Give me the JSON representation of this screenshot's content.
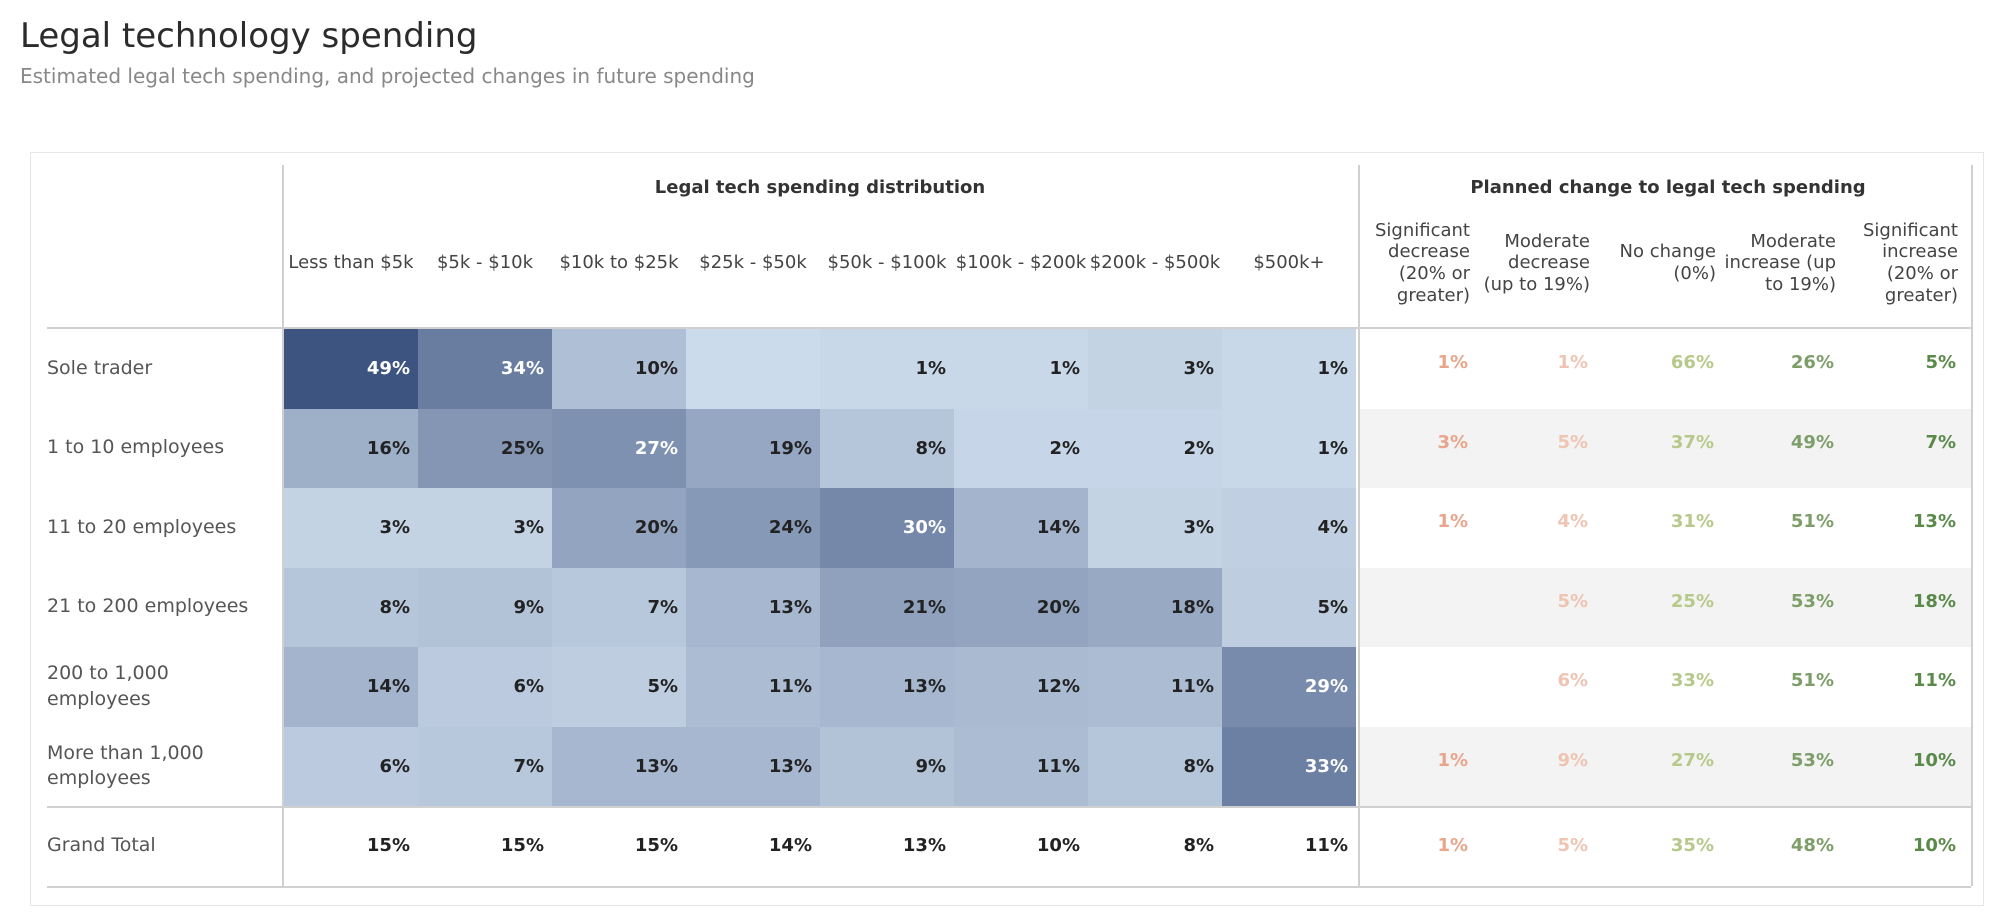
{
  "title": "Legal technology spending",
  "subtitle": "Estimated legal tech spending, and projected changes in future spending",
  "chart_data": {
    "type": "heatmap",
    "distribution": {
      "header": "Legal tech spending distribution",
      "columns": [
        "Less than $5k",
        "$5k - $10k",
        "$10k to $25k",
        "$25k - $50k",
        "$50k - $100k",
        "$100k - $200k",
        "$200k - $500k",
        "$500k+"
      ],
      "rows": [
        "Sole trader",
        "1 to 10 employees",
        "11 to 20 employees",
        "21 to 200 employees",
        "200 to 1,000 employees",
        "More than 1,000 employees",
        "Grand Total"
      ],
      "values": [
        [
          "49%",
          "34%",
          "10%",
          "",
          "1%",
          "1%",
          "3%",
          "1%"
        ],
        [
          "16%",
          "25%",
          "27%",
          "19%",
          "8%",
          "2%",
          "2%",
          "1%"
        ],
        [
          "3%",
          "3%",
          "20%",
          "24%",
          "30%",
          "14%",
          "3%",
          "4%"
        ],
        [
          "8%",
          "9%",
          "7%",
          "13%",
          "21%",
          "20%",
          "18%",
          "5%"
        ],
        [
          "14%",
          "6%",
          "5%",
          "11%",
          "13%",
          "12%",
          "11%",
          "29%"
        ],
        [
          "6%",
          "7%",
          "13%",
          "13%",
          "9%",
          "11%",
          "8%",
          "33%"
        ],
        [
          "15%",
          "15%",
          "15%",
          "14%",
          "13%",
          "10%",
          "8%",
          "11%"
        ]
      ]
    },
    "planned_change": {
      "header": "Planned change to legal tech spending",
      "columns": [
        "Significant decrease (20% or greater)",
        "Moderate decrease (up to 19%)",
        "No change (0%)",
        "Moderate increase (up to 19%)",
        "Significant increase (20% or greater)"
      ],
      "colors": [
        "#e8a58c",
        "#efc4b2",
        "#b7c98a",
        "#7d9e69",
        "#5a8a4a"
      ],
      "values": [
        [
          "1%",
          "1%",
          "66%",
          "26%",
          "5%"
        ],
        [
          "3%",
          "5%",
          "37%",
          "49%",
          "7%"
        ],
        [
          "1%",
          "4%",
          "31%",
          "51%",
          "13%"
        ],
        [
          "",
          "5%",
          "25%",
          "53%",
          "18%"
        ],
        [
          "",
          "6%",
          "33%",
          "51%",
          "11%"
        ],
        [
          "1%",
          "9%",
          "27%",
          "53%",
          "10%"
        ],
        [
          "1%",
          "5%",
          "35%",
          "48%",
          "10%"
        ]
      ]
    },
    "color_scale": {
      "low": "#ccdbeb",
      "high": "#3e5480"
    }
  }
}
